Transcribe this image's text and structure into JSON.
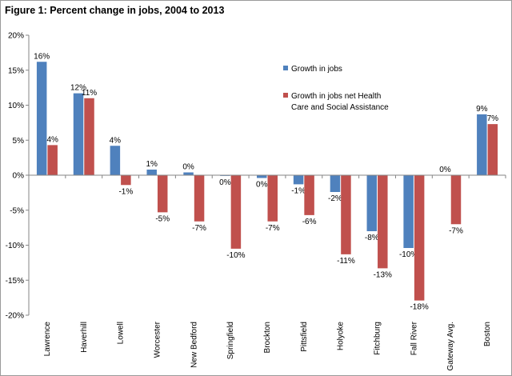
{
  "chart_data": {
    "type": "bar",
    "title": "Figure 1: Percent change in jobs, 2004 to 2013",
    "categories": [
      "Lawrence",
      "Haverhill",
      "Lowell",
      "Worcester",
      "New Bedford",
      "Springfield",
      "Brockton",
      "Pittsfield",
      "Holyoke",
      "Fitchburg",
      "Fall River",
      "Gateway Avg.",
      "Boston"
    ],
    "series": [
      {
        "name": "Growth in jobs",
        "color": "#4f81bd",
        "values": [
          16.2,
          11.7,
          4.2,
          0.8,
          0.4,
          -0.1,
          -0.4,
          -1.3,
          -2.4,
          -8.0,
          -10.4,
          0.0,
          8.7
        ],
        "labels": [
          "16%",
          "12%",
          "4%",
          "1%",
          "0%",
          "0%",
          "0%",
          "-1%",
          "-2%",
          "-8%",
          "-10%",
          "0%",
          "9%"
        ]
      },
      {
        "name": "Growth in jobs net Health Care and Social Assistance",
        "legend_lines": [
          "Growth in jobs net Health",
          "Care and Social Assistance"
        ],
        "color": "#c0504d",
        "values": [
          4.3,
          11.0,
          -1.4,
          -5.3,
          -6.6,
          -10.5,
          -6.6,
          -5.7,
          -11.3,
          -13.3,
          -17.9,
          -7.0,
          7.3
        ],
        "labels": [
          "4%",
          "11%",
          "-1%",
          "-5%",
          "-7%",
          "-10%",
          "-7%",
          "-6%",
          "-11%",
          "-13%",
          "-18%",
          "-7%",
          "7%"
        ]
      }
    ],
    "ylim": [
      -20,
      20
    ],
    "yticks": [
      20,
      15,
      10,
      5,
      0,
      -5,
      -10,
      -15,
      -20
    ],
    "ytick_labels": [
      "20%",
      "15%",
      "10%",
      "5%",
      "0%",
      "-5%",
      "-10%",
      "-15%",
      "-20%"
    ],
    "xlabel": "",
    "ylabel": "",
    "grid": false,
    "legend_position": "upper-right inside plot"
  }
}
